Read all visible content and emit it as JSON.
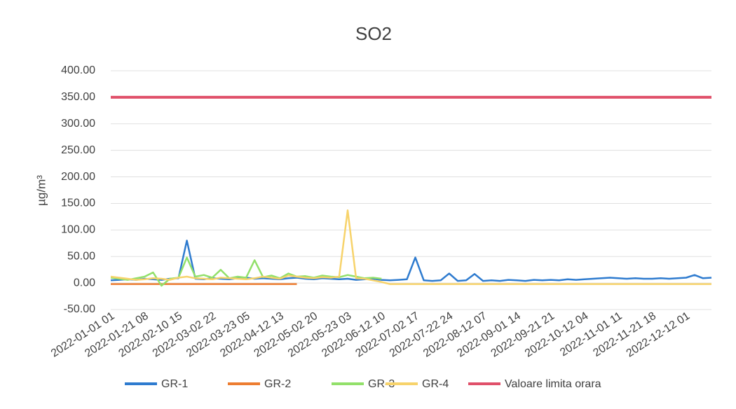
{
  "chart_data": {
    "type": "line",
    "title": "SO2",
    "y_label": "µg/m³",
    "categories": [
      "2022-01-01 01",
      null,
      null,
      null,
      "2022-01-21 08",
      null,
      null,
      null,
      "2022-02-10 15",
      null,
      null,
      null,
      "2022-03-02 22",
      null,
      null,
      null,
      "2022-03-23 05",
      null,
      null,
      null,
      "2022-04-12 13",
      null,
      null,
      null,
      "2022-05-02 20",
      null,
      null,
      null,
      "2022-05-23 03",
      null,
      null,
      null,
      "2022-06-12 10",
      null,
      null,
      null,
      "2022-07-02 17",
      null,
      null,
      null,
      "2022-07-22 24",
      null,
      null,
      null,
      "2022-08-12 07",
      null,
      null,
      null,
      "2022-09-01 14",
      null,
      null,
      null,
      "2022-09-21 21",
      null,
      null,
      null,
      "2022-10-12 04",
      null,
      null,
      null,
      "2022-11-01 11",
      null,
      null,
      null,
      "2022-11-21 18",
      null,
      null,
      null,
      "2022-12-12 01",
      null,
      null,
      null
    ],
    "series": [
      {
        "name": "GR-1",
        "color": "#2e7bcf",
        "values": [
          5,
          6,
          7,
          6,
          8,
          7,
          6,
          8,
          9,
          80,
          8,
          7,
          9,
          8,
          7,
          9,
          10,
          8,
          9,
          8,
          7,
          9,
          10,
          8,
          7,
          9,
          8,
          7,
          8,
          6,
          7,
          8,
          6,
          5,
          6,
          7,
          48,
          5,
          4,
          5,
          18,
          4,
          5,
          17,
          4,
          5,
          4,
          6,
          5,
          4,
          6,
          5,
          6,
          5,
          7,
          6,
          7,
          8,
          9,
          10,
          9,
          8,
          9,
          8,
          8,
          9,
          8,
          9,
          10,
          15,
          9,
          10
        ]
      },
      {
        "name": "GR-2",
        "color": "#ed7d31",
        "values": [
          -2,
          -2,
          -2,
          -2,
          -2,
          -2,
          -2,
          -2,
          -2,
          -2,
          -2,
          -2,
          -2,
          -2,
          -2,
          -2,
          -2,
          -2,
          -2,
          -2,
          -2,
          -2,
          -2,
          null,
          null,
          null,
          null,
          null,
          null,
          null,
          null,
          null,
          null,
          null,
          null,
          null,
          null,
          null,
          null,
          null,
          null,
          null,
          null,
          null,
          null,
          null,
          null,
          null,
          null,
          null,
          null,
          null,
          null,
          null,
          null,
          null,
          null,
          null,
          null,
          null,
          null,
          null,
          null,
          null,
          null,
          null,
          null,
          null,
          null,
          null,
          null,
          null
        ]
      },
      {
        "name": "GR-3",
        "color": "#92e06a",
        "values": [
          10,
          8,
          6,
          9,
          12,
          20,
          -5,
          8,
          10,
          48,
          12,
          15,
          10,
          25,
          9,
          12,
          10,
          43,
          11,
          14,
          9,
          18,
          12,
          13,
          10,
          14,
          12,
          11,
          15,
          12,
          9,
          10,
          8,
          null,
          null,
          null,
          null,
          null,
          null,
          null,
          null,
          null,
          null,
          null,
          null,
          null,
          null,
          null,
          null,
          null,
          null,
          null,
          null,
          null,
          null,
          null,
          null,
          null,
          null,
          null,
          null,
          null,
          null,
          null,
          null,
          null,
          null,
          null,
          null,
          null,
          null,
          null
        ]
      },
      {
        "name": "GR-4",
        "color": "#f7d36b",
        "values": [
          12,
          10,
          8,
          6,
          7,
          9,
          8,
          6,
          10,
          12,
          9,
          8,
          7,
          10,
          9,
          8,
          7,
          9,
          12,
          10,
          8,
          14,
          12,
          10,
          9,
          11,
          10,
          12,
          137,
          9,
          8,
          5,
          2,
          -2,
          -2,
          -2,
          -2,
          -2,
          -2,
          -2,
          -2,
          -2,
          -2,
          -2,
          -2,
          -2,
          -2,
          -2,
          -2,
          -2,
          -2,
          -2,
          -2,
          -2,
          -2,
          -2,
          -2,
          -2,
          -2,
          -2,
          -2,
          -2,
          -2,
          -2,
          -2,
          -2,
          -2,
          -2,
          -2,
          -2,
          -2,
          -2
        ]
      },
      {
        "name": "Valoare limita orara",
        "color": "#e0506a",
        "values": [
          350,
          350,
          350,
          350,
          350,
          350,
          350,
          350,
          350,
          350,
          350,
          350,
          350,
          350,
          350,
          350,
          350,
          350,
          350,
          350,
          350,
          350,
          350,
          350,
          350,
          350,
          350,
          350,
          350,
          350,
          350,
          350,
          350,
          350,
          350,
          350,
          350,
          350,
          350,
          350,
          350,
          350,
          350,
          350,
          350,
          350,
          350,
          350,
          350,
          350,
          350,
          350,
          350,
          350,
          350,
          350,
          350,
          350,
          350,
          350,
          350,
          350,
          350,
          350,
          350,
          350,
          350,
          350,
          350,
          350,
          350,
          350
        ]
      }
    ],
    "ylim": [
      -50,
      400
    ],
    "yticks": [
      {
        "value": -50,
        "label": "-50.00"
      },
      {
        "value": 0,
        "label": "0.00"
      },
      {
        "value": 50,
        "label": "50.00"
      },
      {
        "value": 100,
        "label": "100.00"
      },
      {
        "value": 150,
        "label": "150.00"
      },
      {
        "value": 200,
        "label": "200.00"
      },
      {
        "value": 250,
        "label": "250.00"
      },
      {
        "value": 300,
        "label": "300.00"
      },
      {
        "value": 350,
        "label": "350.00"
      },
      {
        "value": 400,
        "label": "400.00"
      }
    ],
    "grid": true,
    "legend": "bottom"
  }
}
